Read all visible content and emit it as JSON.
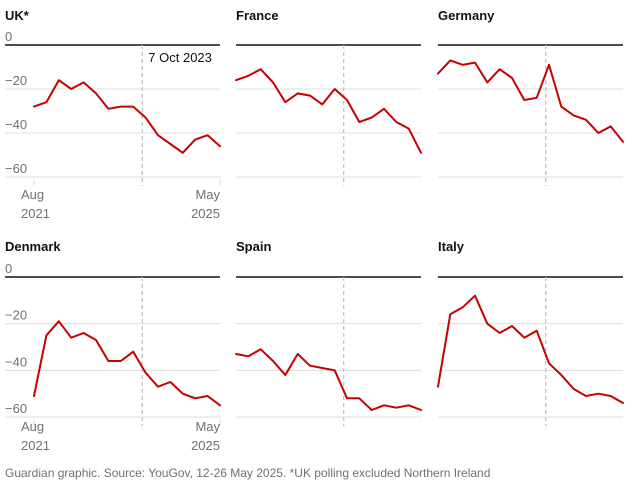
{
  "chart_data": {
    "type": "line",
    "y_ticks": [
      0,
      -20,
      -40,
      -60
    ],
    "ylim": [
      -63,
      0
    ],
    "x_range": [
      "2021-08",
      "2025-05"
    ],
    "x_tick_labels": [
      {
        "month": "Aug",
        "year": "2021"
      },
      {
        "month": "May",
        "year": "2025"
      }
    ],
    "annotation": {
      "label": "7 Oct 2023",
      "date": "2023-10-07"
    },
    "panels": [
      {
        "name": "UK*",
        "values": [
          -28,
          -26,
          -16,
          -20,
          -17,
          -22,
          -29,
          -28,
          -28,
          -33,
          -41,
          -45,
          -49,
          -43,
          -41,
          -46
        ]
      },
      {
        "name": "France",
        "values": [
          -16,
          -14,
          -11,
          -17,
          -26,
          -22,
          -23,
          -27,
          -20,
          -25,
          -35,
          -33,
          -29,
          -35,
          -38,
          -49
        ]
      },
      {
        "name": "Germany",
        "values": [
          -13,
          -7,
          -9,
          -8,
          -17,
          -11,
          -15,
          -25,
          -24,
          -9,
          -28,
          -32,
          -34,
          -40,
          -37,
          -44
        ]
      },
      {
        "name": "Denmark",
        "values": [
          -51,
          -25,
          -19,
          -26,
          -24,
          -27,
          -36,
          -36,
          -32,
          -41,
          -47,
          -45,
          -50,
          -52,
          -51,
          -55
        ]
      },
      {
        "name": "Spain",
        "values": [
          -33,
          -34,
          -31,
          -36,
          -42,
          -33,
          -38,
          -39,
          -40,
          -52,
          -52,
          -57,
          -55,
          -56,
          -55,
          -57
        ]
      },
      {
        "name": "Italy",
        "values": [
          -47,
          -16,
          -13,
          -8,
          -20,
          -24,
          -21,
          -26,
          -23,
          -37,
          -42,
          -48,
          -51,
          -50,
          -51,
          -54
        ]
      }
    ]
  },
  "footer": "Guardian graphic. Source: YouGov, 12-26 May 2025. *UK polling excluded Northern Ireland"
}
